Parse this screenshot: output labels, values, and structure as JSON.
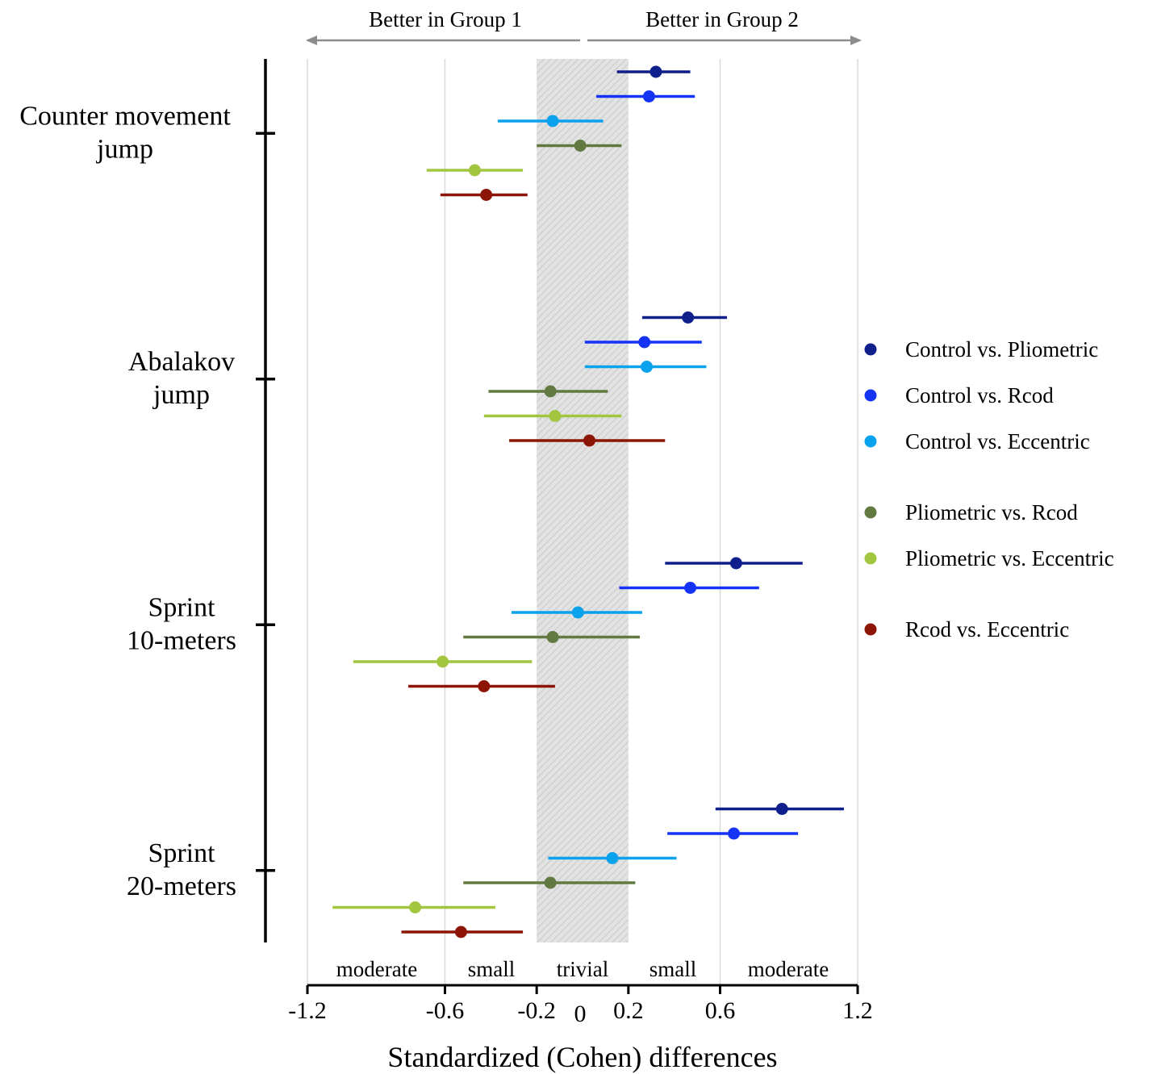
{
  "chart_data": {
    "type": "scatter",
    "subtype": "forest-plot-with-confidence-intervals",
    "xlabel": "Standardized (Cohen) differences",
    "xlim": [
      -1.2,
      1.2
    ],
    "x_ticks": [
      -1.2,
      -0.6,
      -0.2,
      0,
      0.2,
      0.6,
      1.2
    ],
    "x_tick_labels": [
      "-1.2",
      "-0.6",
      "-0.2",
      "0",
      "0.2",
      "0.6",
      "1.2"
    ],
    "gridlines_x": [
      -1.2,
      -0.6,
      0.6,
      1.2
    ],
    "trivial_band": [
      -0.2,
      0.2
    ],
    "direction_labels": {
      "left": "Better in Group 1",
      "right": "Better in Group 2"
    },
    "zone_labels": [
      "moderate",
      "small",
      "trivial",
      "small",
      "moderate"
    ],
    "categories": [
      "Counter movement\njump",
      "Abalakov\njump",
      "Sprint\n10-meters",
      "Sprint\n20-meters"
    ],
    "legend_position": "right",
    "series": [
      {
        "name": "Control vs. Pliometric",
        "color": "#0f1f8c",
        "points": [
          {
            "x": 0.32,
            "lo": 0.15,
            "hi": 0.47
          },
          {
            "x": 0.46,
            "lo": 0.26,
            "hi": 0.63
          },
          {
            "x": 0.67,
            "lo": 0.36,
            "hi": 0.96
          },
          {
            "x": 0.87,
            "lo": 0.58,
            "hi": 1.14
          }
        ]
      },
      {
        "name": "Control vs. Rcod",
        "color": "#1533f5",
        "points": [
          {
            "x": 0.29,
            "lo": 0.06,
            "hi": 0.49
          },
          {
            "x": 0.27,
            "lo": 0.01,
            "hi": 0.52
          },
          {
            "x": 0.47,
            "lo": 0.16,
            "hi": 0.77
          },
          {
            "x": 0.66,
            "lo": 0.37,
            "hi": 0.94
          }
        ]
      },
      {
        "name": "Control vs. Eccentric",
        "color": "#0aa2ec",
        "points": [
          {
            "x": -0.13,
            "lo": -0.37,
            "hi": 0.09
          },
          {
            "x": 0.28,
            "lo": 0.01,
            "hi": 0.54
          },
          {
            "x": -0.02,
            "lo": -0.31,
            "hi": 0.26
          },
          {
            "x": 0.13,
            "lo": -0.15,
            "hi": 0.41
          }
        ]
      },
      {
        "name": "Pliometric vs. Rcod",
        "color": "#627a42",
        "points": [
          {
            "x": -0.01,
            "lo": -0.2,
            "hi": 0.17
          },
          {
            "x": -0.14,
            "lo": -0.41,
            "hi": 0.11
          },
          {
            "x": -0.13,
            "lo": -0.52,
            "hi": 0.25
          },
          {
            "x": -0.14,
            "lo": -0.52,
            "hi": 0.23
          }
        ]
      },
      {
        "name": "Pliometric vs. Eccentric",
        "color": "#a2c640",
        "points": [
          {
            "x": -0.47,
            "lo": -0.68,
            "hi": -0.26
          },
          {
            "x": -0.12,
            "lo": -0.43,
            "hi": 0.17
          },
          {
            "x": -0.61,
            "lo": -1.0,
            "hi": -0.22
          },
          {
            "x": -0.73,
            "lo": -1.09,
            "hi": -0.38
          }
        ]
      },
      {
        "name": "Rcod vs. Eccentric",
        "color": "#8c1505",
        "points": [
          {
            "x": -0.42,
            "lo": -0.62,
            "hi": -0.24
          },
          {
            "x": 0.03,
            "lo": -0.32,
            "hi": 0.36
          },
          {
            "x": -0.43,
            "lo": -0.76,
            "hi": -0.12
          },
          {
            "x": -0.53,
            "lo": -0.79,
            "hi": -0.26
          }
        ]
      }
    ]
  }
}
